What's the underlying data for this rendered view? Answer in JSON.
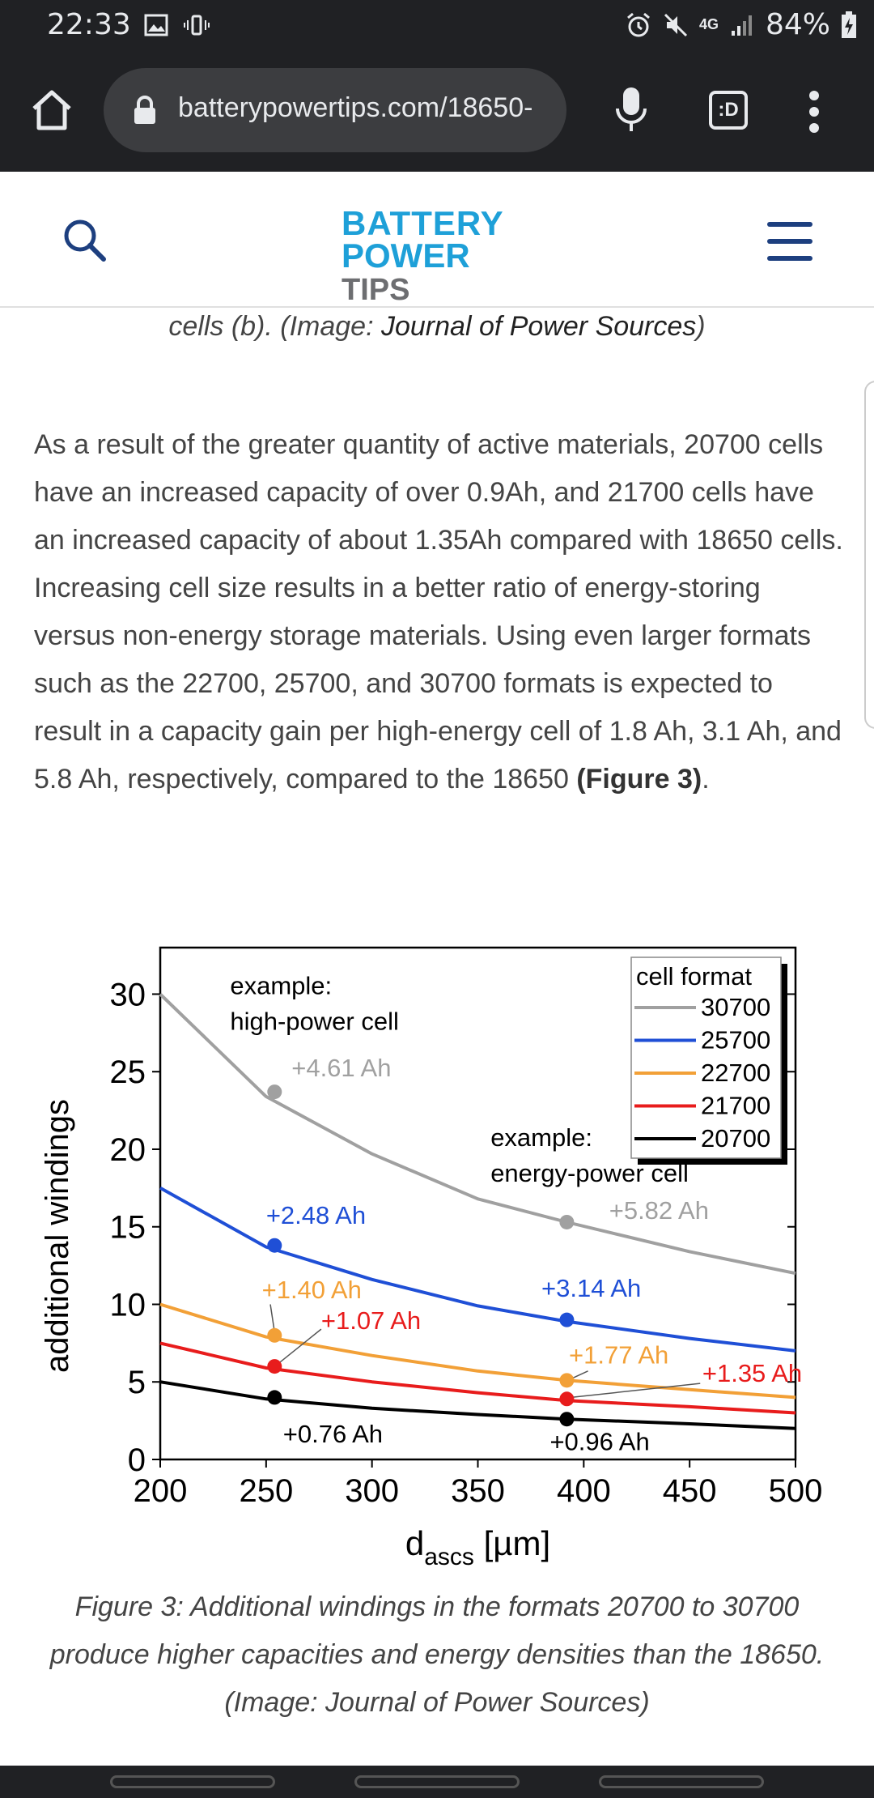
{
  "status": {
    "time": "22:33",
    "battery": "84%",
    "network": "4G"
  },
  "browser": {
    "url": "batterypowertips.com/18650-",
    "tabs_label": ":D"
  },
  "site": {
    "logo_line1": "BATTERY",
    "logo_power": "POWER",
    "logo_tips": "TIPS"
  },
  "article": {
    "caption_top_prefix": "cells (b). (Image: ",
    "caption_top_source": "Journal of Power Sources",
    "caption_top_suffix": ")",
    "paragraph_text": "As a result of the greater quantity of active materials, 20700 cells have an increased capacity of over 0.9Ah, and 21700 cells have an increased capacity of about 1.35Ah compared with 18650 cells. Increasing cell size results in a better ratio of energy-storing versus non-energy storage materials. Using even larger formats such as the 22700, 25700, and 30700 formats is expected to result in a capacity gain per high-energy cell of 1.8 Ah, 3.1 Ah, and 5.8 Ah, respectively, compared to the 18650 ",
    "paragraph_bold": "(Figure 3)",
    "paragraph_end": ".",
    "caption_bottom_prefix": "Figure 3: Additional windings in the formats 20700 to 30700 produce higher capacities and energy densities than the 18650. (Image: ",
    "caption_bottom_source": "Journal of Power Sources",
    "caption_bottom_suffix": ")"
  },
  "colors": {
    "s30700": "#a0a0a0",
    "s25700": "#1f4fd6",
    "s22700": "#f2a037",
    "s21700": "#e81c1c",
    "s20700": "#000000"
  },
  "chart_data": {
    "type": "line",
    "xlabel": "d",
    "xlabel_sub": "ascs",
    "xlabel_unit": " [µm]",
    "ylabel": "additional windings",
    "xlim": [
      200,
      500
    ],
    "ylim": [
      0,
      33
    ],
    "xticks": [
      200,
      250,
      300,
      350,
      400,
      450,
      500
    ],
    "yticks": [
      0,
      5,
      10,
      15,
      20,
      25,
      30
    ],
    "legend_title": "cell format",
    "legend_position": "top-right",
    "series": [
      {
        "name": "30700",
        "color_key": "s30700",
        "x": [
          200,
          250,
          300,
          350,
          392,
          450,
          500
        ],
        "y": [
          30,
          23.4,
          19.7,
          16.8,
          15.3,
          13.4,
          12.0
        ]
      },
      {
        "name": "25700",
        "color_key": "s25700",
        "x": [
          200,
          250,
          300,
          350,
          392,
          450,
          500
        ],
        "y": [
          17.5,
          13.7,
          11.6,
          9.9,
          8.9,
          7.8,
          7.0
        ]
      },
      {
        "name": "22700",
        "color_key": "s22700",
        "x": [
          200,
          250,
          300,
          350,
          392,
          450,
          500
        ],
        "y": [
          10.0,
          7.9,
          6.7,
          5.7,
          5.1,
          4.5,
          4.0
        ]
      },
      {
        "name": "21700",
        "color_key": "s21700",
        "x": [
          200,
          250,
          300,
          350,
          392,
          450,
          500
        ],
        "y": [
          7.5,
          5.9,
          5.0,
          4.3,
          3.8,
          3.4,
          3.0
        ]
      },
      {
        "name": "20700",
        "color_key": "s20700",
        "x": [
          200,
          250,
          300,
          350,
          392,
          450,
          500
        ],
        "y": [
          5.0,
          3.9,
          3.3,
          2.9,
          2.6,
          2.3,
          2.0
        ]
      }
    ],
    "points": [
      {
        "x": 254,
        "y": 23.7,
        "color_key": "s30700"
      },
      {
        "x": 254,
        "y": 13.8,
        "color_key": "s25700"
      },
      {
        "x": 254,
        "y": 8.0,
        "color_key": "s22700"
      },
      {
        "x": 254,
        "y": 6.0,
        "color_key": "s21700"
      },
      {
        "x": 254,
        "y": 4.0,
        "color_key": "s20700"
      },
      {
        "x": 392,
        "y": 15.3,
        "color_key": "s30700"
      },
      {
        "x": 392,
        "y": 9.0,
        "color_key": "s25700"
      },
      {
        "x": 392,
        "y": 5.1,
        "color_key": "s22700"
      },
      {
        "x": 392,
        "y": 3.9,
        "color_key": "s21700"
      },
      {
        "x": 392,
        "y": 2.6,
        "color_key": "s20700"
      }
    ],
    "annotations": [
      {
        "text": "example:",
        "x": 233,
        "y": 30.0,
        "color_key": "s20700"
      },
      {
        "text": "high-power cell",
        "x": 233,
        "y": 27.7,
        "color_key": "s20700"
      },
      {
        "text": "+4.61 Ah",
        "x": 262,
        "y": 24.7,
        "color_key": "s30700"
      },
      {
        "text": "example:",
        "x": 356,
        "y": 20.2,
        "color_key": "s20700"
      },
      {
        "text": "energy-power cell",
        "x": 356,
        "y": 17.9,
        "color_key": "s20700"
      },
      {
        "text": "+5.82 Ah",
        "x": 412,
        "y": 15.5,
        "color_key": "s30700"
      },
      {
        "text": "+2.48 Ah",
        "x": 250,
        "y": 15.2,
        "color_key": "s25700"
      },
      {
        "text": "+3.14 Ah",
        "x": 380,
        "y": 10.5,
        "color_key": "s25700"
      },
      {
        "text": "+1.40 Ah",
        "x": 248,
        "y": 10.4,
        "color_key": "s22700"
      },
      {
        "text": "+1.07 Ah",
        "x": 276,
        "y": 8.4,
        "color_key": "s21700"
      },
      {
        "text": "+1.77 Ah",
        "x": 393,
        "y": 6.2,
        "color_key": "s22700"
      },
      {
        "text": "+1.35 Ah",
        "x": 456,
        "y": 5.0,
        "color_key": "s21700"
      },
      {
        "text": "+0.76 Ah",
        "x": 258,
        "y": 1.1,
        "color_key": "s20700"
      },
      {
        "text": "+0.96 Ah",
        "x": 384,
        "y": 0.6,
        "color_key": "s20700"
      }
    ]
  }
}
